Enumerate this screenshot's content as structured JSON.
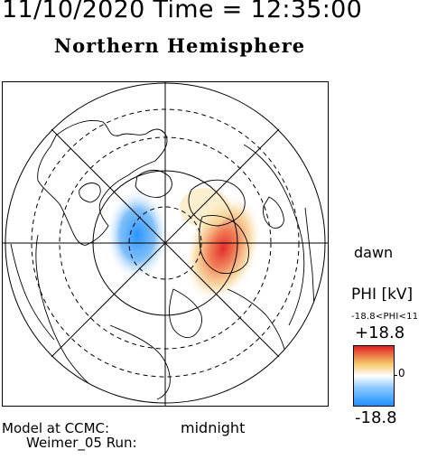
{
  "header": {
    "date_time_line": "11/10/2020 Time = 12:35:00",
    "hemisphere_title": "Northern Hemisphere"
  },
  "map": {
    "dawn_label": "dawn",
    "midnight_label": "midnight"
  },
  "colorbar": {
    "title": "PHI [kV]",
    "range_text": "-18.8<PHI<11",
    "max_label": "+18.8",
    "min_label": "-18.8",
    "zero_label": "0",
    "colors": {
      "negative": "#1e90ff",
      "zero": "#ffffff",
      "positive_low": "#f5c86a",
      "positive_high": "#e02020"
    }
  },
  "footer": {
    "model_line": "Model at CCMC:",
    "run_line": "Weimer_05 Run:"
  }
}
